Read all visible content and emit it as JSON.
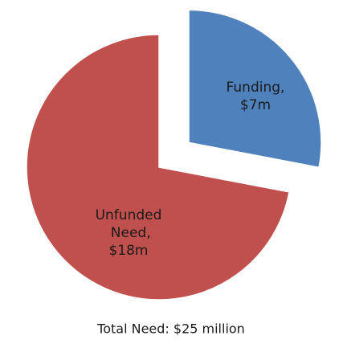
{
  "chart_data": {
    "type": "pie",
    "categories": [
      "Funding,",
      "Unfunded Need,"
    ],
    "values": [
      7,
      18
    ],
    "value_labels": [
      "$7m",
      "$18m"
    ],
    "colors": [
      "#4f81bd",
      "#c0504d"
    ],
    "exploded": [
      true,
      false
    ],
    "footer": "Total Need: $25 million"
  }
}
